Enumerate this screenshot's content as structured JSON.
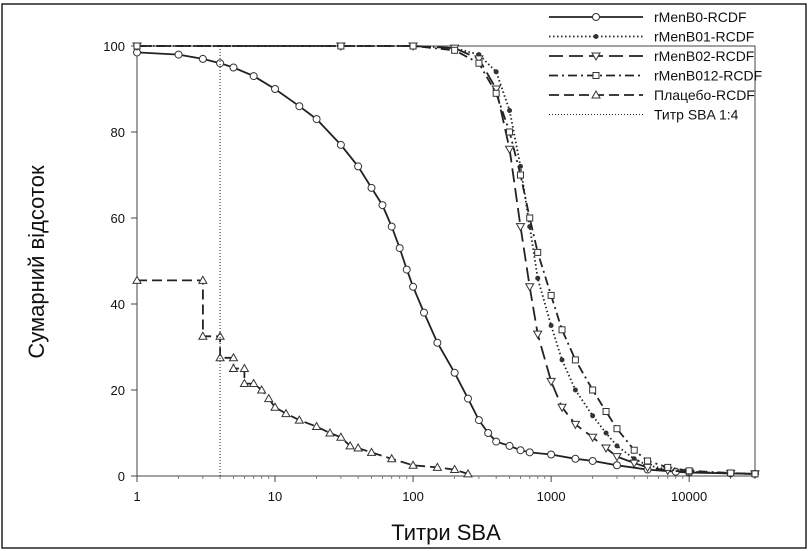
{
  "chart_data": {
    "type": "line",
    "xlabel": "Титри SBA",
    "ylabel": "Сумарний відсоток",
    "x_scale": "log",
    "xlim": [
      1,
      30000
    ],
    "ylim": [
      0,
      100
    ],
    "x_ticks": [
      1,
      10,
      100,
      1000,
      10000
    ],
    "x_tick_labels": [
      "1",
      "10",
      "100",
      "1000",
      "10000"
    ],
    "y_ticks": [
      0,
      20,
      40,
      60,
      80,
      100
    ],
    "y_tick_labels": [
      "0",
      "20",
      "40",
      "60",
      "80",
      "100"
    ],
    "grid": false,
    "legend_position": "top-right",
    "series": [
      {
        "name": "rMenB0-RCDF",
        "style": "solid",
        "marker": "circle",
        "points": [
          [
            1,
            98.5
          ],
          [
            2,
            98
          ],
          [
            3,
            97
          ],
          [
            4,
            96
          ],
          [
            5,
            95
          ],
          [
            7,
            93
          ],
          [
            10,
            90
          ],
          [
            15,
            86
          ],
          [
            20,
            83
          ],
          [
            30,
            77
          ],
          [
            40,
            72
          ],
          [
            50,
            67
          ],
          [
            60,
            63
          ],
          [
            70,
            58
          ],
          [
            80,
            53
          ],
          [
            90,
            48
          ],
          [
            100,
            44
          ],
          [
            120,
            38
          ],
          [
            150,
            31
          ],
          [
            200,
            24
          ],
          [
            250,
            18
          ],
          [
            300,
            13
          ],
          [
            350,
            10
          ],
          [
            400,
            8
          ],
          [
            500,
            7
          ],
          [
            600,
            6
          ],
          [
            700,
            5.5
          ],
          [
            1000,
            5
          ],
          [
            1500,
            4
          ],
          [
            2000,
            3.5
          ],
          [
            3000,
            2.5
          ],
          [
            5000,
            1.5
          ],
          [
            8000,
            1
          ],
          [
            10000,
            0.8
          ],
          [
            20000,
            0.6
          ],
          [
            30000,
            0.5
          ]
        ]
      },
      {
        "name": "rMenB01-RCDF",
        "style": "dotted",
        "marker": "dot",
        "points": [
          [
            1,
            100
          ],
          [
            30,
            100
          ],
          [
            100,
            100
          ],
          [
            200,
            99.5
          ],
          [
            300,
            98
          ],
          [
            400,
            94
          ],
          [
            500,
            85
          ],
          [
            600,
            72
          ],
          [
            700,
            58
          ],
          [
            800,
            46
          ],
          [
            1000,
            35
          ],
          [
            1200,
            27
          ],
          [
            1500,
            20
          ],
          [
            2000,
            14
          ],
          [
            2500,
            10
          ],
          [
            3000,
            7
          ],
          [
            4000,
            4
          ],
          [
            5000,
            2.5
          ],
          [
            7000,
            1.5
          ],
          [
            10000,
            1
          ],
          [
            20000,
            0.6
          ],
          [
            30000,
            0.5
          ]
        ]
      },
      {
        "name": "rMenB02-RCDF",
        "style": "long-dash",
        "marker": "triangle-down",
        "points": [
          [
            1,
            100
          ],
          [
            30,
            100
          ],
          [
            100,
            100
          ],
          [
            200,
            99.5
          ],
          [
            300,
            97
          ],
          [
            400,
            90
          ],
          [
            500,
            76
          ],
          [
            600,
            58
          ],
          [
            700,
            44
          ],
          [
            800,
            33
          ],
          [
            1000,
            22
          ],
          [
            1200,
            16
          ],
          [
            1500,
            12
          ],
          [
            2000,
            9
          ],
          [
            2500,
            6.5
          ],
          [
            3000,
            4.5
          ],
          [
            4000,
            3
          ],
          [
            5000,
            2
          ],
          [
            7000,
            1.3
          ],
          [
            10000,
            0.9
          ],
          [
            20000,
            0.6
          ],
          [
            30000,
            0.5
          ]
        ]
      },
      {
        "name": "rMenB012-RCDF",
        "style": "dash-dot",
        "marker": "square",
        "points": [
          [
            1,
            100
          ],
          [
            30,
            100
          ],
          [
            100,
            100
          ],
          [
            200,
            99
          ],
          [
            300,
            96
          ],
          [
            400,
            89
          ],
          [
            500,
            80
          ],
          [
            600,
            70
          ],
          [
            700,
            60
          ],
          [
            800,
            52
          ],
          [
            1000,
            42
          ],
          [
            1200,
            34
          ],
          [
            1500,
            27
          ],
          [
            2000,
            20
          ],
          [
            2500,
            15
          ],
          [
            3000,
            11
          ],
          [
            4000,
            6
          ],
          [
            5000,
            3.5
          ],
          [
            7000,
            2
          ],
          [
            10000,
            1.2
          ],
          [
            20000,
            0.7
          ],
          [
            30000,
            0.5
          ]
        ]
      },
      {
        "name": "Плацебо-RCDF",
        "style": "dashed",
        "marker": "triangle-up",
        "points": [
          [
            1,
            45.5
          ],
          [
            3,
            45.5
          ],
          [
            3,
            32.5
          ],
          [
            4,
            32.5
          ],
          [
            4,
            27.5
          ],
          [
            5,
            27.5
          ],
          [
            5,
            25
          ],
          [
            6,
            25
          ],
          [
            6,
            21.5
          ],
          [
            7,
            21.5
          ],
          [
            8,
            20
          ],
          [
            9,
            18
          ],
          [
            10,
            16
          ],
          [
            12,
            14.5
          ],
          [
            15,
            13
          ],
          [
            20,
            11.5
          ],
          [
            25,
            10
          ],
          [
            30,
            9
          ],
          [
            35,
            7
          ],
          [
            40,
            6.5
          ],
          [
            50,
            5.5
          ],
          [
            70,
            4
          ],
          [
            100,
            2.5
          ],
          [
            150,
            2
          ],
          [
            200,
            1.5
          ],
          [
            250,
            0.5
          ]
        ]
      },
      {
        "name": "Титр SBA 1:4",
        "style": "dotted-fine",
        "marker": "none",
        "points": [
          [
            4,
            100
          ],
          [
            4,
            0
          ]
        ]
      }
    ]
  }
}
